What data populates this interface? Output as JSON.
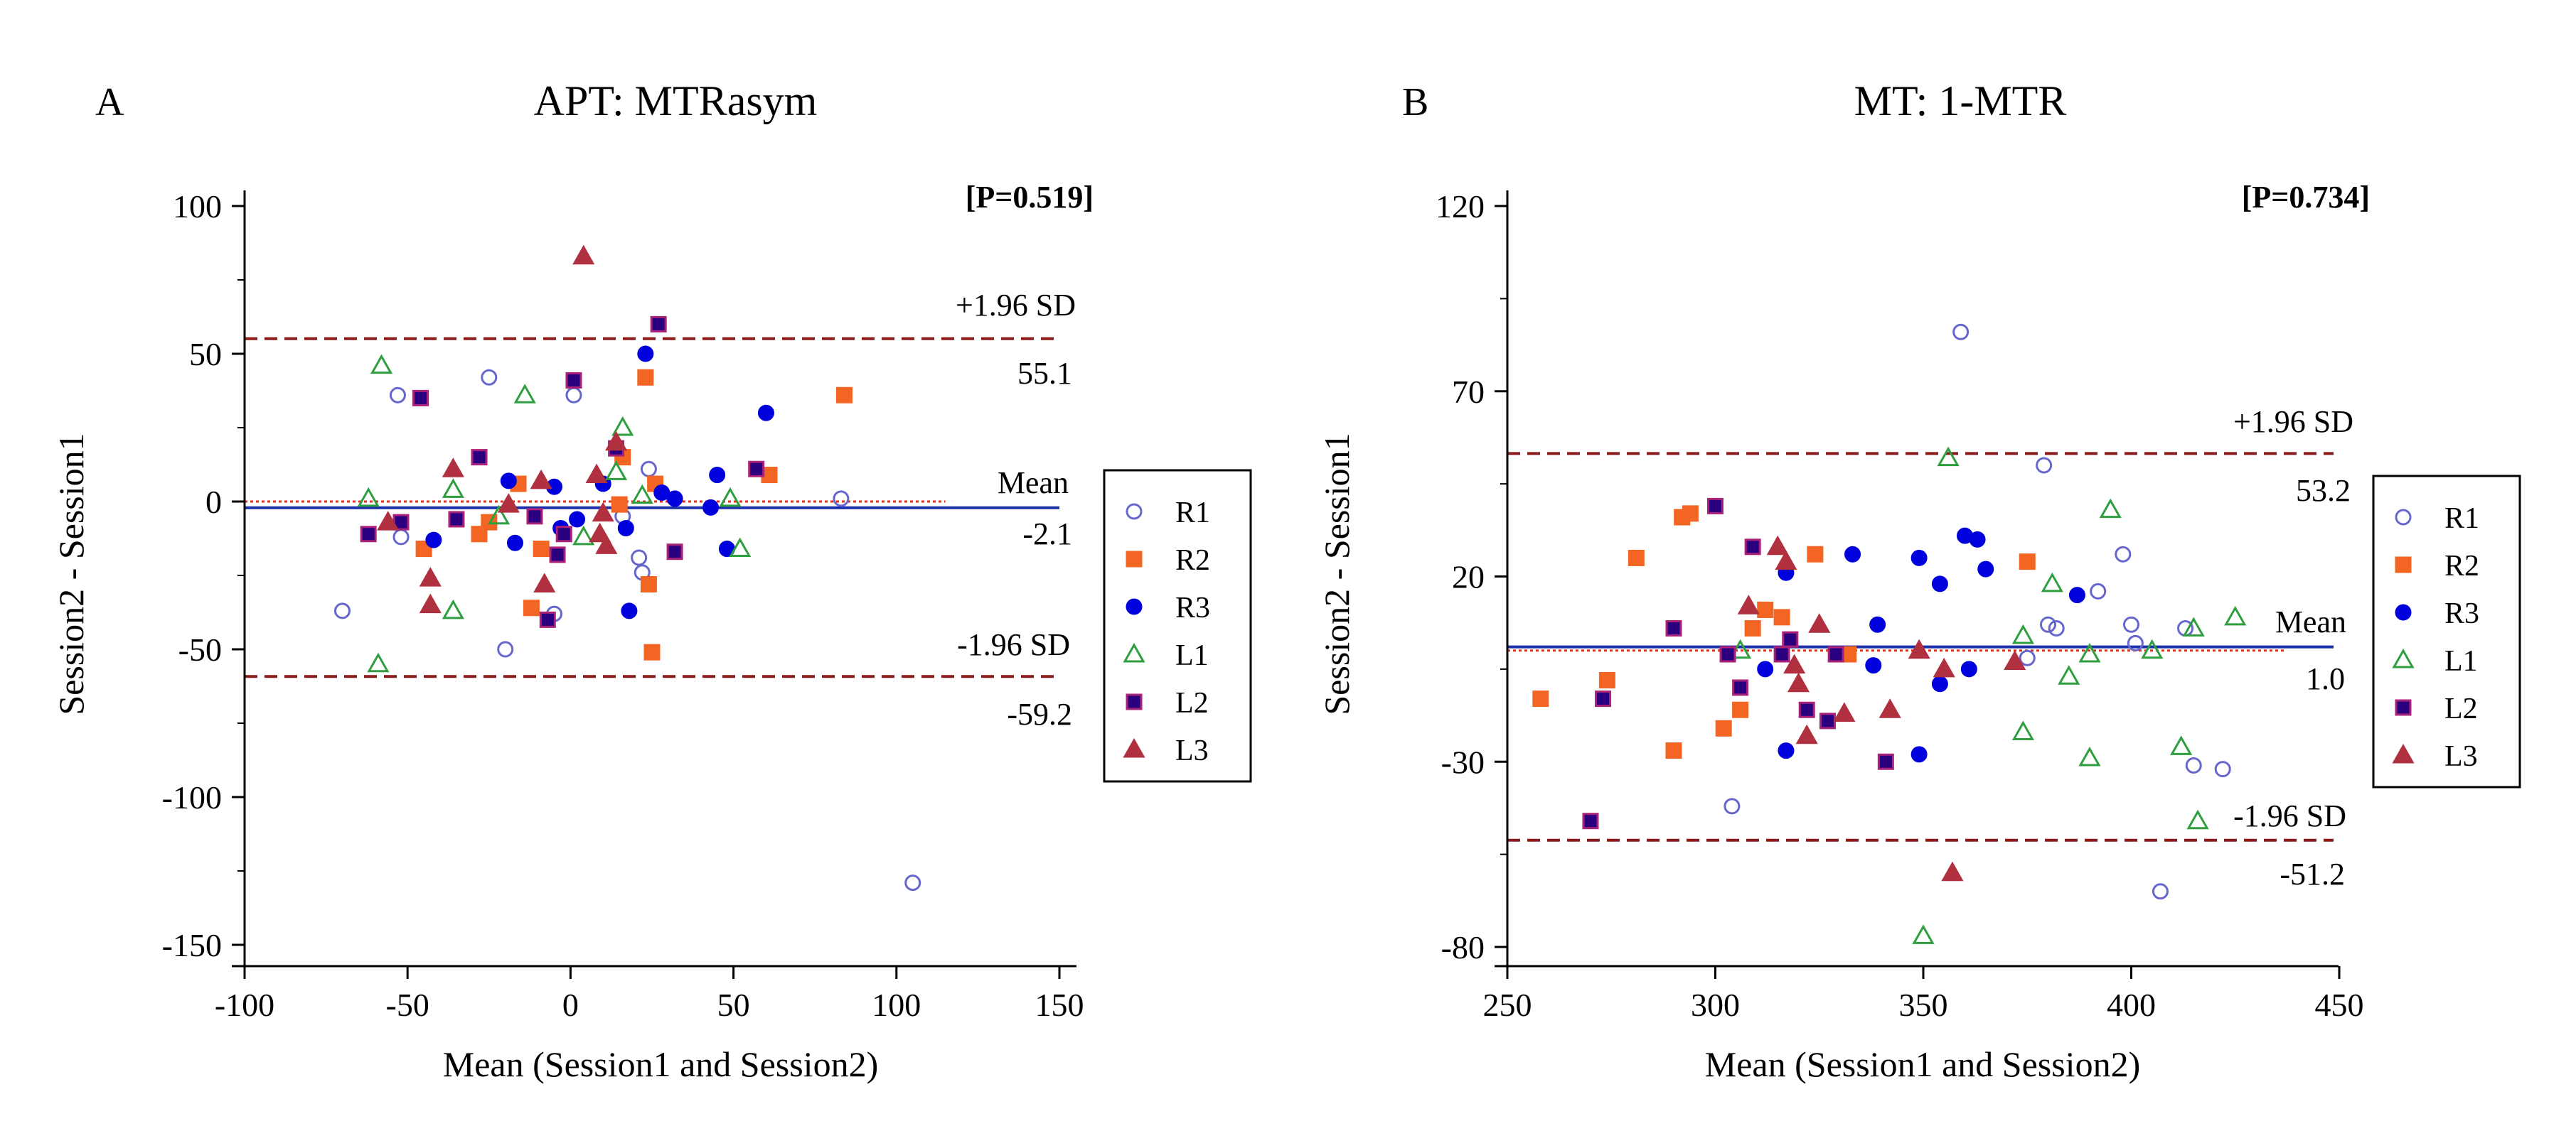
{
  "chart_data": [
    {
      "type": "scatter",
      "panel": "A",
      "title": "APT: MTRasym",
      "xlabel": "Mean (Session1 and Session2)",
      "ylabel": "Session2 - Session1",
      "xlim": [
        -100,
        150
      ],
      "ylim": [
        -150,
        100
      ],
      "xticks": [
        -100,
        -50,
        0,
        50,
        100,
        150
      ],
      "xtick_labels": [
        "-100",
        "-50",
        "0",
        "50",
        "100",
        "150"
      ],
      "yticks": [
        -150,
        -100,
        -50,
        0,
        50,
        100
      ],
      "ytick_labels": [
        "-150",
        "-100",
        "-50",
        "0",
        "50",
        "100"
      ],
      "p_value": "[P=0.519]",
      "upper_loa": {
        "value": 55.1,
        "label": "+1.96 SD",
        "value_label": "55.1"
      },
      "mean_line": {
        "value": -2.1,
        "label": "Mean",
        "value_label": "-2.1"
      },
      "lower_loa": {
        "value": -59.2,
        "label": "-1.96 SD",
        "value_label": "-59.2"
      },
      "zero_line": {
        "value": 0,
        "x_range": [
          -100,
          115
        ]
      },
      "legend": [
        "R1",
        "R2",
        "R3",
        "L1",
        "L2",
        "L3"
      ],
      "series": [
        {
          "name": "R1",
          "points": [
            [
              -70,
              -37
            ],
            [
              -53,
              36
            ],
            [
              -52,
              -12
            ],
            [
              -25,
              42
            ],
            [
              -20,
              -50
            ],
            [
              -5,
              -38
            ],
            [
              1,
              36
            ],
            [
              16,
              -5
            ],
            [
              21,
              -19
            ],
            [
              22,
              -24
            ],
            [
              24,
              11
            ],
            [
              83,
              1
            ],
            [
              105,
              -129
            ]
          ]
        },
        {
          "name": "R2",
          "points": [
            [
              -45,
              -16
            ],
            [
              -28,
              -11
            ],
            [
              -25,
              -7
            ],
            [
              -16,
              6
            ],
            [
              -12,
              -36
            ],
            [
              -9,
              -16
            ],
            [
              15,
              -1
            ],
            [
              16,
              15
            ],
            [
              23,
              42
            ],
            [
              24,
              -28
            ],
            [
              26,
              6
            ],
            [
              25,
              -51
            ],
            [
              61,
              9
            ],
            [
              84,
              36
            ]
          ]
        },
        {
          "name": "R3",
          "points": [
            [
              -42,
              -13
            ],
            [
              -19,
              7
            ],
            [
              -17,
              -14
            ],
            [
              -5,
              5
            ],
            [
              -3,
              -9
            ],
            [
              2,
              -6
            ],
            [
              10,
              6
            ],
            [
              14,
              18
            ],
            [
              17,
              -9
            ],
            [
              18,
              -37
            ],
            [
              23,
              50
            ],
            [
              28,
              3
            ],
            [
              32,
              1
            ],
            [
              45,
              9
            ],
            [
              48,
              -16
            ],
            [
              60,
              30
            ],
            [
              43,
              -2
            ]
          ]
        },
        {
          "name": "L1",
          "points": [
            [
              -62,
              1
            ],
            [
              -59,
              -55
            ],
            [
              -58,
              46
            ],
            [
              -36,
              4
            ],
            [
              -36,
              -37
            ],
            [
              -22,
              -5
            ],
            [
              -14,
              36
            ],
            [
              4,
              -12
            ],
            [
              14,
              10
            ],
            [
              16,
              25
            ],
            [
              22,
              2
            ],
            [
              49,
              1
            ],
            [
              52,
              -16
            ]
          ]
        },
        {
          "name": "L2",
          "points": [
            [
              -62,
              -11
            ],
            [
              -52,
              -7
            ],
            [
              -46,
              35
            ],
            [
              -35,
              -6
            ],
            [
              -28,
              15
            ],
            [
              -11,
              -5
            ],
            [
              -7,
              -40
            ],
            [
              -4,
              -18
            ],
            [
              -2,
              -11
            ],
            [
              1,
              41
            ],
            [
              14,
              18
            ],
            [
              27,
              60
            ],
            [
              32,
              -17
            ],
            [
              57,
              11
            ]
          ]
        },
        {
          "name": "L3",
          "points": [
            [
              -56,
              -7
            ],
            [
              -43,
              -26
            ],
            [
              -43,
              -35
            ],
            [
              -36,
              11
            ],
            [
              -19,
              -1
            ],
            [
              -9,
              7
            ],
            [
              -8,
              -28
            ],
            [
              4,
              83
            ],
            [
              9,
              -11
            ],
            [
              8,
              9
            ],
            [
              11,
              -15
            ],
            [
              14,
              20
            ],
            [
              10,
              -4
            ]
          ]
        }
      ]
    },
    {
      "type": "scatter",
      "panel": "B",
      "title": "MT: 1-MTR",
      "xlabel": "Mean (Session1 and Session2)",
      "ylabel": "Session2 - Session1",
      "xlim": [
        250,
        450
      ],
      "ylim": [
        -80,
        120
      ],
      "xticks": [
        250,
        300,
        350,
        400,
        450
      ],
      "xtick_labels": [
        "250",
        "300",
        "350",
        "400",
        "450"
      ],
      "yticks": [
        -80,
        -30,
        20,
        70,
        120
      ],
      "ytick_labels": [
        "-80",
        "-30",
        "20",
        "70",
        "120"
      ],
      "p_value": "[P=0.734]",
      "upper_loa": {
        "value": 53.2,
        "label": "+1.96 SD",
        "value_label": "53.2"
      },
      "mean_line": {
        "value": 1.0,
        "label": "Mean",
        "value_label": "1.0"
      },
      "lower_loa": {
        "value": -51.2,
        "label": "-1.96 SD",
        "value_label": "-51.2"
      },
      "zero_line": {
        "value": 0,
        "x_range": [
          250,
          437
        ]
      },
      "legend": [
        "R1",
        "R2",
        "R3",
        "L1",
        "L2",
        "L3"
      ],
      "series": [
        {
          "name": "R1",
          "points": [
            [
              304,
              -42
            ],
            [
              359,
              86
            ],
            [
              379,
              50
            ],
            [
              380,
              7
            ],
            [
              382,
              6
            ],
            [
              375,
              -2
            ],
            [
              392,
              16
            ],
            [
              398,
              26
            ],
            [
              400,
              7
            ],
            [
              401,
              2
            ],
            [
              413,
              6
            ],
            [
              415,
              -31
            ],
            [
              422,
              -32
            ],
            [
              407,
              -65
            ]
          ]
        },
        {
          "name": "R2",
          "points": [
            [
              258,
              -13
            ],
            [
              274,
              -8
            ],
            [
              281,
              25
            ],
            [
              290,
              -27
            ],
            [
              292,
              36
            ],
            [
              294,
              37
            ],
            [
              302,
              -21
            ],
            [
              306,
              -16
            ],
            [
              309,
              6
            ],
            [
              312,
              11
            ],
            [
              316,
              9
            ],
            [
              324,
              26
            ],
            [
              332,
              -1
            ],
            [
              375,
              24
            ]
          ]
        },
        {
          "name": "R3",
          "points": [
            [
              312,
              -5
            ],
            [
              317,
              21
            ],
            [
              317,
              -27
            ],
            [
              333,
              26
            ],
            [
              338,
              -4
            ],
            [
              339,
              7
            ],
            [
              349,
              25
            ],
            [
              349,
              -28
            ],
            [
              354,
              18
            ],
            [
              360,
              31
            ],
            [
              363,
              30
            ],
            [
              365,
              22
            ],
            [
              387,
              15
            ],
            [
              354,
              -9
            ],
            [
              361,
              -5
            ]
          ]
        },
        {
          "name": "L1",
          "points": [
            [
              306,
              0
            ],
            [
              350,
              -77
            ],
            [
              356,
              52
            ],
            [
              374,
              -22
            ],
            [
              374,
              4
            ],
            [
              381,
              18
            ],
            [
              385,
              -7
            ],
            [
              390,
              -1
            ],
            [
              390,
              -29
            ],
            [
              395,
              38
            ],
            [
              405,
              0
            ],
            [
              412,
              -26
            ],
            [
              415,
              6
            ],
            [
              416,
              -46
            ],
            [
              425,
              9
            ]
          ]
        },
        {
          "name": "L2",
          "points": [
            [
              270,
              -46
            ],
            [
              273,
              -13
            ],
            [
              290,
              6
            ],
            [
              300,
              39
            ],
            [
              303,
              -1
            ],
            [
              306,
              -10
            ],
            [
              309,
              28
            ],
            [
              316,
              -1
            ],
            [
              318,
              3
            ],
            [
              322,
              -16
            ],
            [
              327,
              -19
            ],
            [
              329,
              -1
            ],
            [
              341,
              -30
            ]
          ]
        },
        {
          "name": "L3",
          "points": [
            [
              308,
              12
            ],
            [
              315,
              28
            ],
            [
              317,
              24
            ],
            [
              319,
              -4
            ],
            [
              320,
              -9
            ],
            [
              322,
              -23
            ],
            [
              325,
              7
            ],
            [
              331,
              -17
            ],
            [
              342,
              -16
            ],
            [
              349,
              0
            ],
            [
              355,
              -5
            ],
            [
              357,
              -60
            ],
            [
              372,
              -3
            ]
          ]
        }
      ]
    }
  ]
}
